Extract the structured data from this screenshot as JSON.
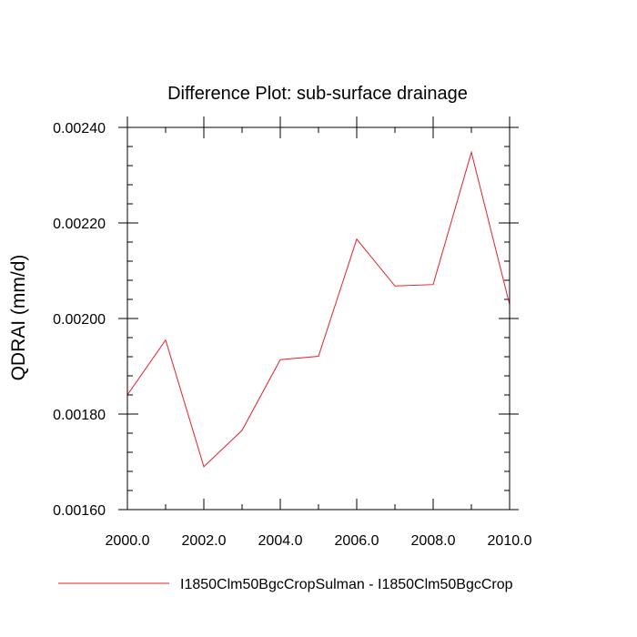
{
  "chart_data": {
    "type": "line",
    "title": "Difference Plot: sub-surface drainage",
    "xlabel": "",
    "ylabel": "QDRAI  (mm/d)",
    "xlim": [
      2000,
      2010
    ],
    "ylim": [
      0.0016,
      0.0024
    ],
    "x_ticks": [
      2000,
      2002,
      2004,
      2006,
      2008,
      2010
    ],
    "x_tick_labels": [
      "2000.0",
      "2002.0",
      "2004.0",
      "2006.0",
      "2008.0",
      "2010.0"
    ],
    "y_ticks": [
      0.0016,
      0.0018,
      0.002,
      0.0022,
      0.0024
    ],
    "y_tick_labels": [
      "0.00160",
      "0.00180",
      "0.00200",
      "0.00220",
      "0.00240"
    ],
    "grid": false,
    "legend_position": "bottom",
    "series": [
      {
        "name": "I1850Clm50BgcCropSulman - I1850Clm50BgcCrop",
        "color": "#e8202a",
        "x": [
          2000,
          2001,
          2002,
          2003,
          2004,
          2005,
          2006,
          2007,
          2008,
          2009,
          2010
        ],
        "y": [
          0.00184,
          0.001955,
          0.00169,
          0.001766,
          0.001914,
          0.001921,
          0.002166,
          0.002068,
          0.002071,
          0.002348,
          0.002029
        ]
      }
    ]
  }
}
